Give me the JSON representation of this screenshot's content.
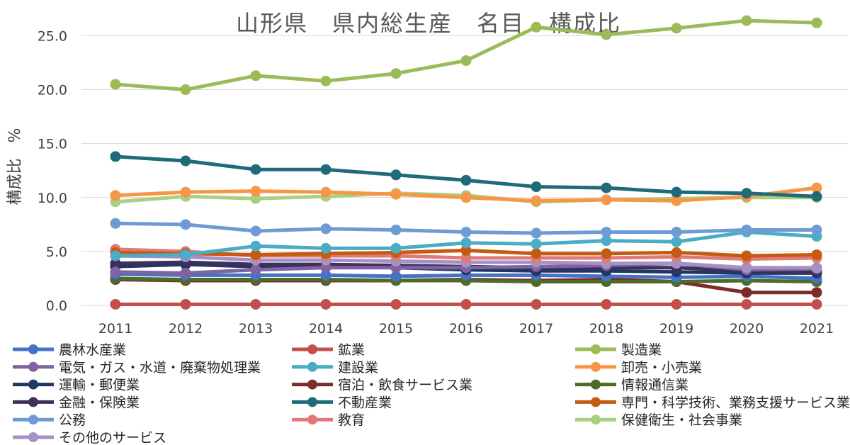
{
  "chart_data": {
    "type": "line",
    "title": "山形県　県内総生産　名目　構成比",
    "xlabel": "",
    "ylabel": "構成比　%",
    "ylim": [
      0,
      27
    ],
    "yticks": [
      0,
      5,
      10,
      15,
      20,
      25
    ],
    "ytick_labels": [
      "0.0",
      "5.0",
      "10.0",
      "15.0",
      "20.0",
      "25.0"
    ],
    "grid": true,
    "legend_position": "bottom",
    "categories": [
      "2011",
      "2012",
      "2013",
      "2014",
      "2015",
      "2016",
      "2017",
      "2018",
      "2019",
      "2020",
      "2021"
    ],
    "series": [
      {
        "name": "農林水産業",
        "color": "#4472c4",
        "values": [
          2.9,
          2.8,
          2.8,
          2.8,
          2.7,
          2.8,
          2.8,
          2.7,
          2.6,
          2.7,
          2.5
        ]
      },
      {
        "name": "鉱業",
        "color": "#c0504d",
        "values": [
          0.1,
          0.1,
          0.1,
          0.1,
          0.1,
          0.1,
          0.1,
          0.1,
          0.1,
          0.1,
          0.1
        ]
      },
      {
        "name": "製造業",
        "color": "#9bbb59",
        "values": [
          20.5,
          20.0,
          21.3,
          20.8,
          21.5,
          22.7,
          25.8,
          25.1,
          25.7,
          26.4,
          26.2
        ]
      },
      {
        "name": "電気・ガス・水道・廃棄物処理業",
        "color": "#8064a2",
        "values": [
          3.1,
          3.0,
          3.3,
          3.5,
          3.5,
          3.5,
          3.6,
          3.7,
          3.9,
          3.3,
          3.4
        ]
      },
      {
        "name": "建設業",
        "color": "#4bacc6",
        "values": [
          4.6,
          4.7,
          5.5,
          5.3,
          5.3,
          5.8,
          5.7,
          6.0,
          5.9,
          6.8,
          6.4
        ]
      },
      {
        "name": "卸売・小売業",
        "color": "#f79646",
        "values": [
          10.2,
          10.5,
          10.6,
          10.5,
          10.3,
          10.0,
          9.7,
          9.8,
          9.7,
          10.1,
          10.9
        ]
      },
      {
        "name": "運輸・郵便業",
        "color": "#1f3864",
        "values": [
          3.6,
          3.8,
          3.6,
          3.6,
          3.5,
          3.3,
          3.2,
          3.2,
          3.1,
          3.0,
          3.0
        ]
      },
      {
        "name": "宿泊・飲食サービス業",
        "color": "#7b2c2c",
        "values": [
          2.4,
          2.3,
          2.3,
          2.3,
          2.3,
          2.4,
          2.3,
          2.4,
          2.2,
          1.2,
          1.2
        ]
      },
      {
        "name": "情報通信業",
        "color": "#4e6b28",
        "values": [
          2.5,
          2.4,
          2.4,
          2.4,
          2.3,
          2.3,
          2.2,
          2.2,
          2.2,
          2.3,
          2.2
        ]
      },
      {
        "name": "金融・保険業",
        "color": "#3f2f5a",
        "values": [
          3.9,
          4.0,
          3.8,
          3.8,
          3.7,
          3.6,
          3.5,
          3.5,
          3.5,
          3.2,
          3.1
        ]
      },
      {
        "name": "不動産業",
        "color": "#1f6b7a",
        "values": [
          13.8,
          13.4,
          12.6,
          12.6,
          12.1,
          11.6,
          11.0,
          10.9,
          10.5,
          10.4,
          10.1
        ]
      },
      {
        "name": "専門・科学技術、業務支援サービス業",
        "color": "#c55a11",
        "values": [
          4.9,
          4.8,
          4.7,
          4.8,
          4.9,
          5.1,
          4.8,
          4.8,
          4.9,
          4.6,
          4.7
        ]
      },
      {
        "name": "公務",
        "color": "#6f9bd4",
        "values": [
          7.6,
          7.5,
          6.9,
          7.1,
          7.0,
          6.8,
          6.7,
          6.8,
          6.8,
          7.0,
          7.0
        ]
      },
      {
        "name": "教育",
        "color": "#e07a76",
        "values": [
          5.2,
          5.0,
          4.6,
          4.6,
          4.6,
          4.4,
          4.4,
          4.4,
          4.5,
          4.3,
          4.4
        ]
      },
      {
        "name": "保健衛生・社会事業",
        "color": "#a9cf80",
        "values": [
          9.6,
          10.1,
          9.9,
          10.1,
          10.4,
          10.2,
          9.6,
          9.8,
          9.9,
          10.0,
          10.0
        ]
      },
      {
        "name": "その他のサービス",
        "color": "#a492c5",
        "values": [
          4.6,
          4.5,
          4.2,
          4.2,
          4.1,
          4.0,
          4.0,
          3.9,
          3.9,
          3.5,
          3.5
        ]
      }
    ]
  }
}
